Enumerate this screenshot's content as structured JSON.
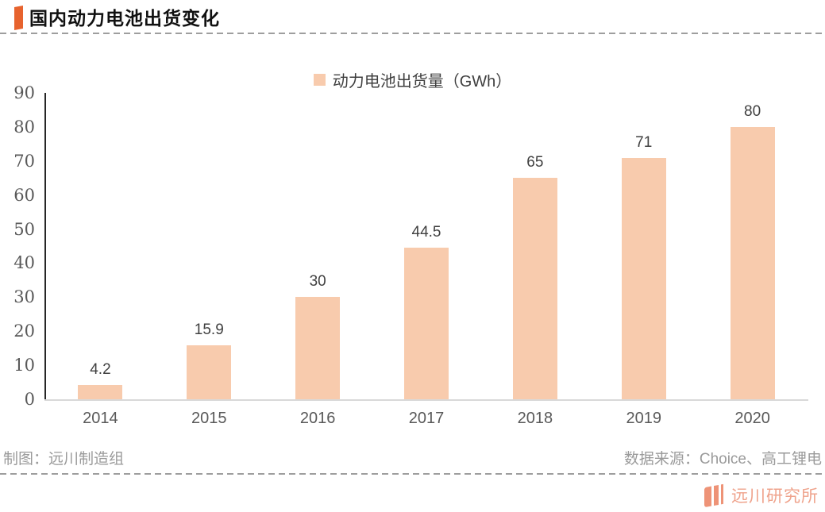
{
  "header": {
    "title": "国内动力电池出货变化"
  },
  "chart_data": {
    "type": "bar",
    "legend_label": "动力电池出货量（GWh）",
    "categories": [
      "2014",
      "2015",
      "2016",
      "2017",
      "2018",
      "2019",
      "2020"
    ],
    "values": [
      4.2,
      15.9,
      30,
      44.5,
      65,
      71,
      80
    ],
    "value_labels": [
      "4.2",
      "15.9",
      "30",
      "44.5",
      "65",
      "71",
      "80"
    ],
    "title": "",
    "xlabel": "",
    "ylabel": "",
    "ylim": [
      0,
      90
    ],
    "yticks": [
      0,
      10,
      20,
      30,
      40,
      50,
      60,
      70,
      80,
      90
    ],
    "grid": false,
    "legend_position": "top-center",
    "bar_color": "#F8CBAD"
  },
  "footer": {
    "credit": "制图：远川制造组",
    "source": "数据来源：Choice、高工锂电"
  },
  "branding": {
    "logo_icon": "three-bars-icon",
    "logo_text": "远川研究所",
    "icon_color": "#EE9377",
    "text_color": "#EFA38C"
  },
  "colors": {
    "accent": "#E7632E",
    "bar": "#F8CBAD",
    "axis_line": "#262626",
    "baseline": "#D9D9D9",
    "axis_text": "#595959",
    "value_text": "#404040",
    "muted_text": "#9A9A9A"
  }
}
